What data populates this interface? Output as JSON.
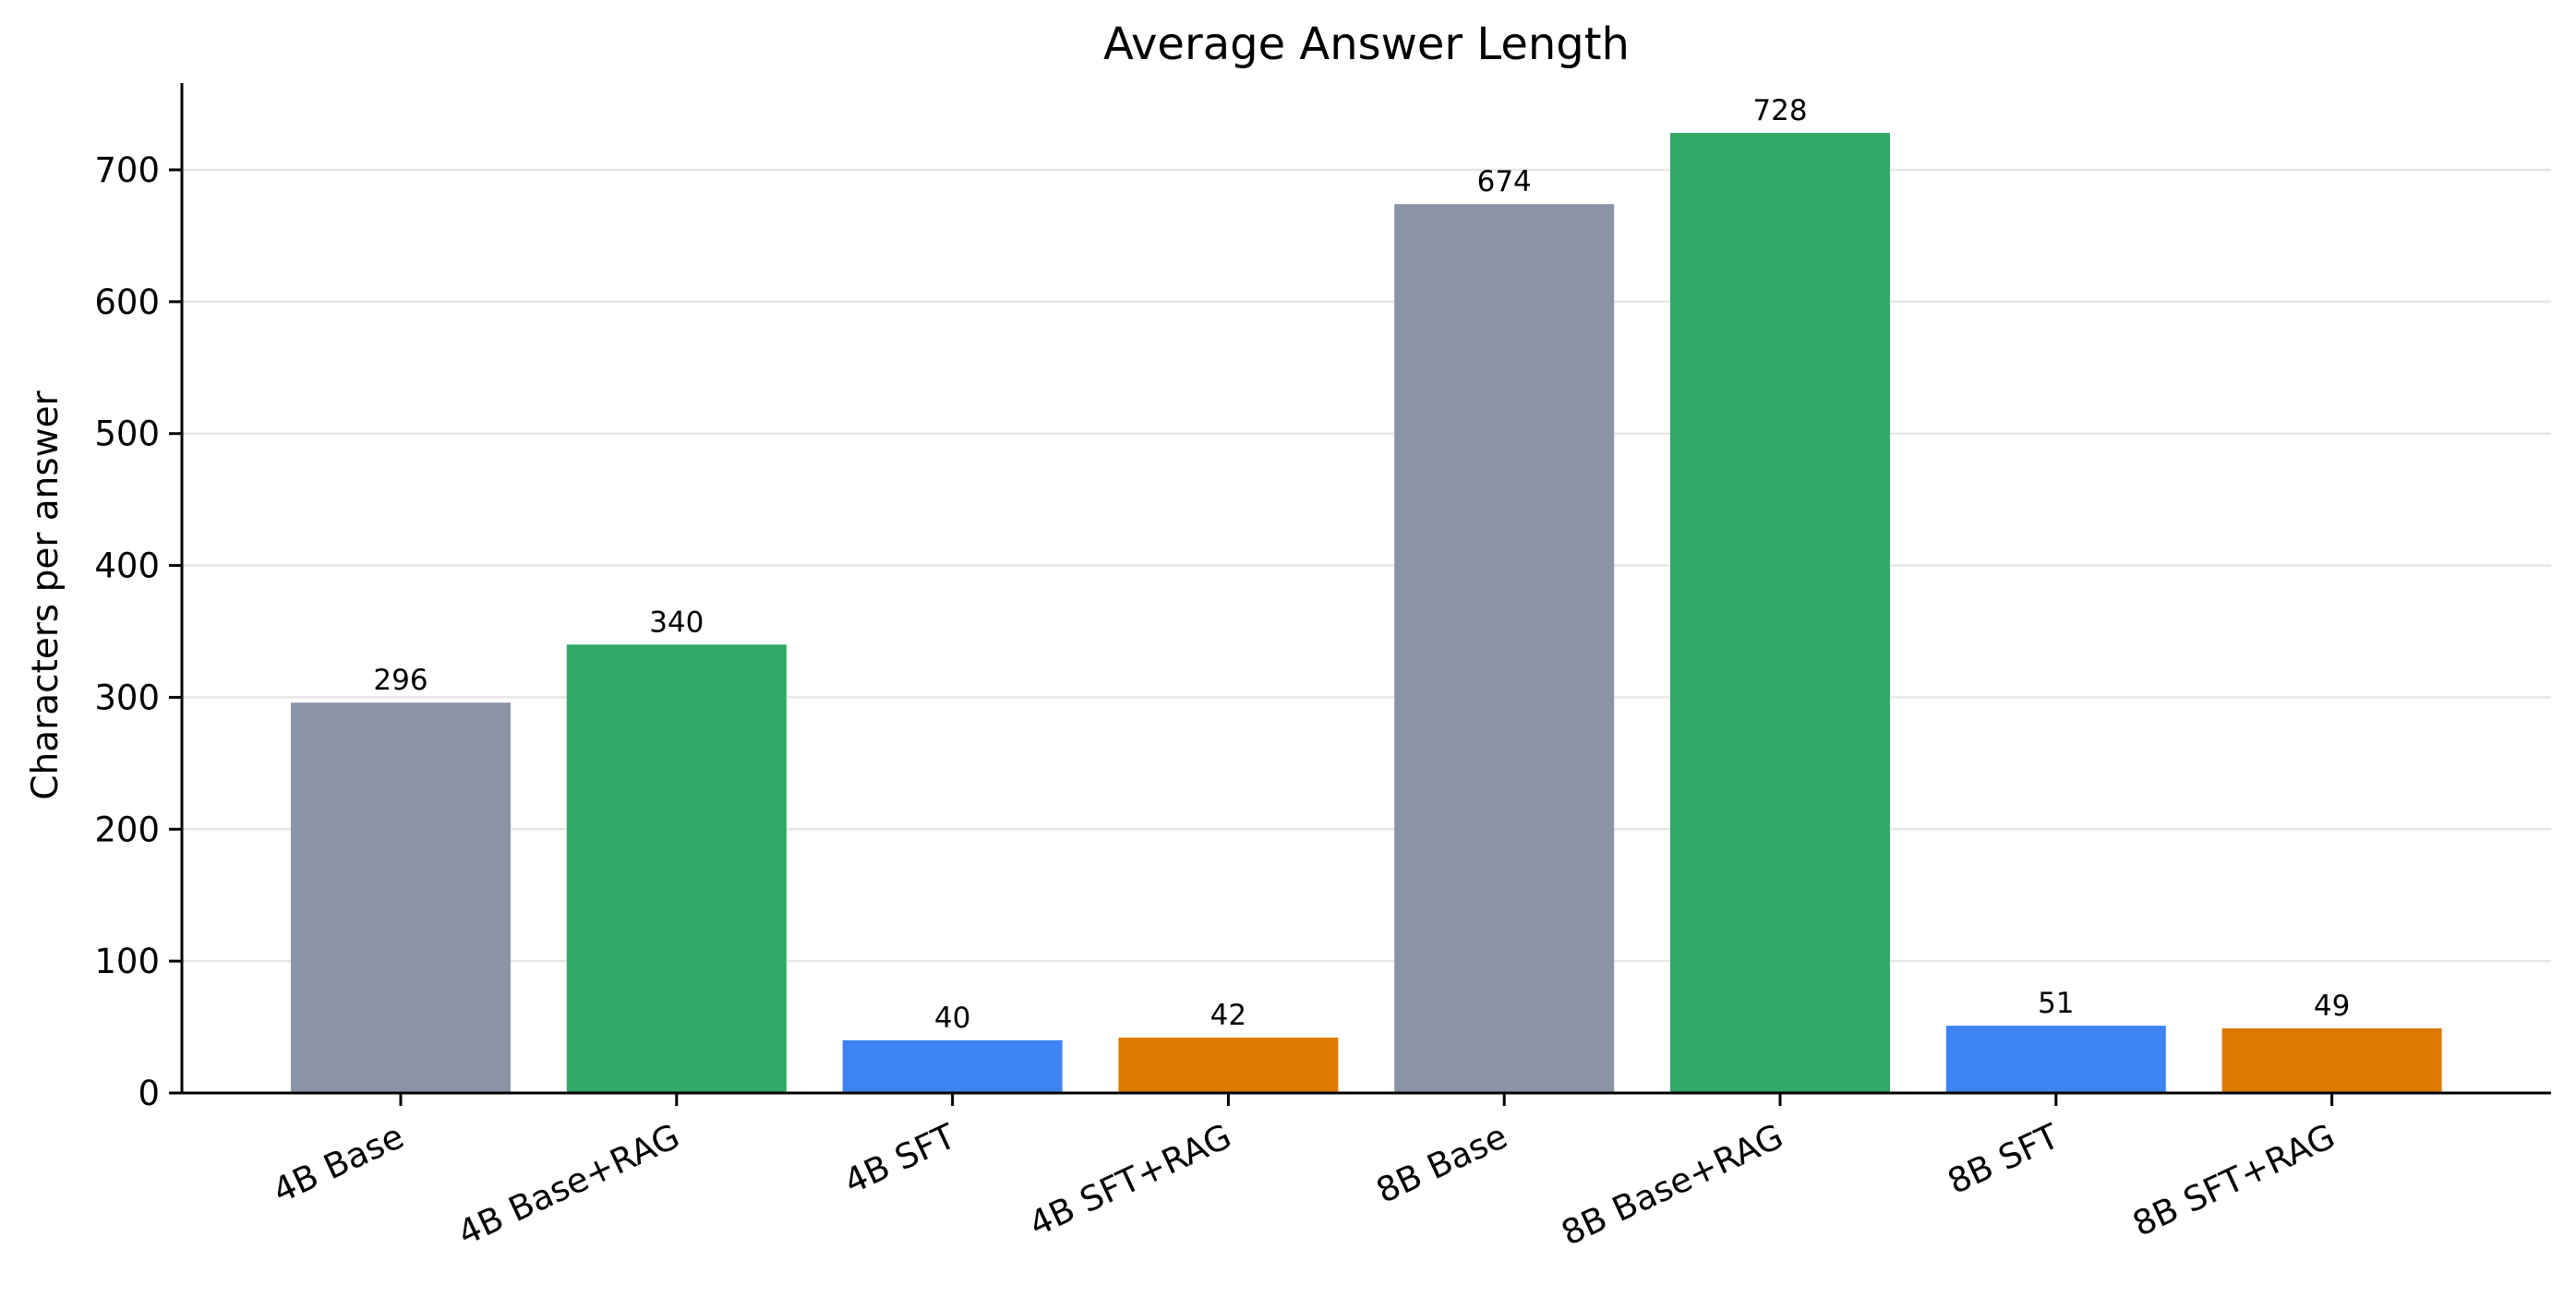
{
  "chart_data": {
    "type": "bar",
    "title": "Average Answer Length",
    "xlabel": "",
    "ylabel": "Characters per answer",
    "categories": [
      "4B Base",
      "4B Base+RAG",
      "4B SFT",
      "4B SFT+RAG",
      "8B Base",
      "8B Base+RAG",
      "8B SFT",
      "8B SFT+RAG"
    ],
    "values": [
      296,
      340,
      40,
      42,
      674,
      728,
      51,
      49
    ],
    "data_labels": [
      "296",
      "340",
      "40",
      "42",
      "674",
      "728",
      "51",
      "49"
    ],
    "colors": [
      "#8a94a6",
      "#30a866",
      "#3d84f2",
      "#e07a00",
      "#8a94a6",
      "#30a866",
      "#3d84f2",
      "#e07a00"
    ],
    "yticks": [
      0,
      100,
      200,
      300,
      400,
      500,
      600,
      700
    ],
    "ytick_labels": [
      "0",
      "100",
      "200",
      "300",
      "400",
      "500",
      "600",
      "700"
    ],
    "ylim": [
      0,
      764
    ],
    "grid": "horizontal",
    "legend": "none"
  }
}
